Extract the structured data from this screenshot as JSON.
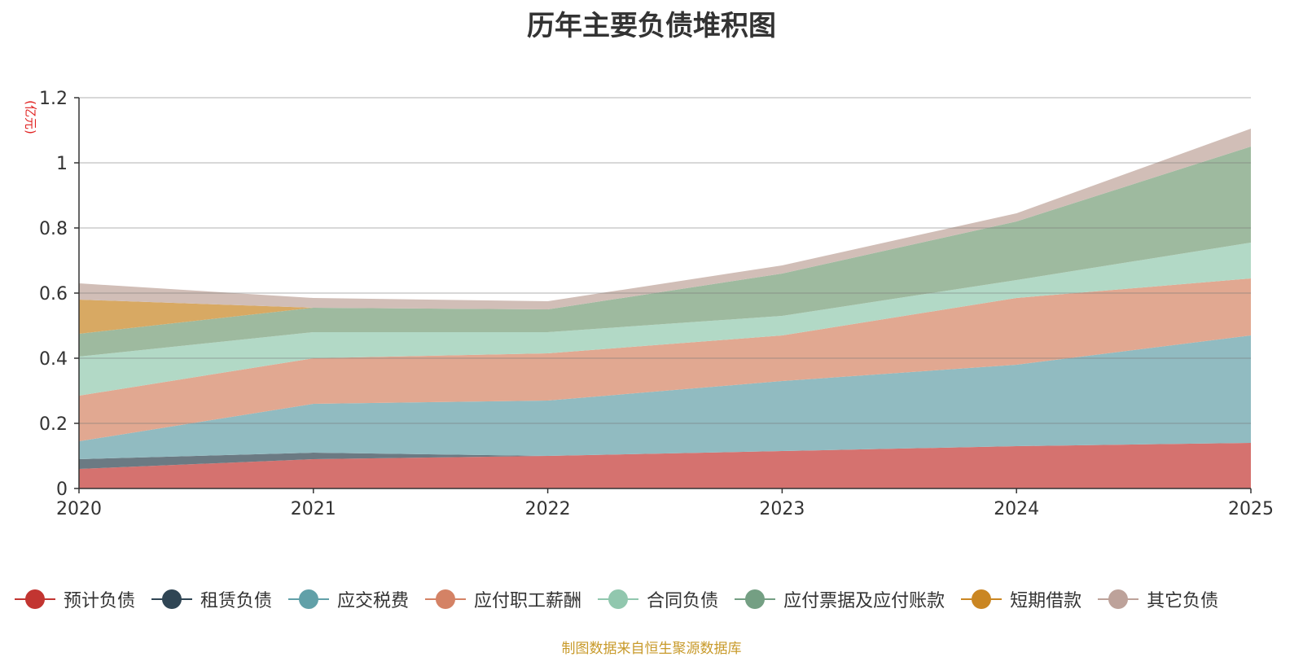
{
  "chart_data": {
    "type": "area",
    "stacked": true,
    "title": "历年主要负债堆积图",
    "ylabel": "(亿元)",
    "xlabel": "",
    "categories": [
      "2020",
      "2021",
      "2022",
      "2023",
      "2024",
      "2025"
    ],
    "ylim": [
      0,
      1.2
    ],
    "yticks": [
      0,
      0.2,
      0.4,
      0.6,
      0.8,
      1,
      1.2
    ],
    "ytick_labels": [
      "0",
      "0.2",
      "0.4",
      "0.6",
      "0.8",
      "1",
      "1.2"
    ],
    "grid": true,
    "legend_position": "bottom",
    "series": [
      {
        "name": "预计负债",
        "color": "#c23531",
        "fill": "#d5726f",
        "values": [
          0.06,
          0.09,
          0.1,
          0.115,
          0.13,
          0.14
        ]
      },
      {
        "name": "租赁负债",
        "color": "#2f4554",
        "fill": "#6b7a83",
        "values": [
          0.03,
          0.02,
          0.0,
          0.0,
          0.0,
          0.0
        ]
      },
      {
        "name": "应交税费",
        "color": "#61a0a8",
        "fill": "#91bbc1",
        "values": [
          0.055,
          0.15,
          0.17,
          0.215,
          0.25,
          0.33
        ]
      },
      {
        "name": "应付职工薪酬",
        "color": "#d48265",
        "fill": "#e1a891",
        "values": [
          0.14,
          0.14,
          0.145,
          0.14,
          0.205,
          0.175
        ]
      },
      {
        "name": "合同负债",
        "color": "#91c7ae",
        "fill": "#b2d9c6",
        "values": [
          0.12,
          0.08,
          0.065,
          0.06,
          0.055,
          0.11
        ]
      },
      {
        "name": "应付票据及应付账款",
        "color": "#749f83",
        "fill": "#9eba9f",
        "values": [
          0.07,
          0.075,
          0.07,
          0.13,
          0.18,
          0.295
        ]
      },
      {
        "name": "短期借款",
        "color": "#ca8622",
        "fill": "#d8a963",
        "values": [
          0.105,
          0.0,
          0.0,
          0.0,
          0.0,
          0.0
        ]
      },
      {
        "name": "其它负债",
        "color": "#bda29a",
        "fill": "#d1beb7",
        "values": [
          0.05,
          0.03,
          0.025,
          0.025,
          0.025,
          0.055
        ]
      }
    ]
  },
  "source_note": "制图数据来自恒生聚源数据库"
}
